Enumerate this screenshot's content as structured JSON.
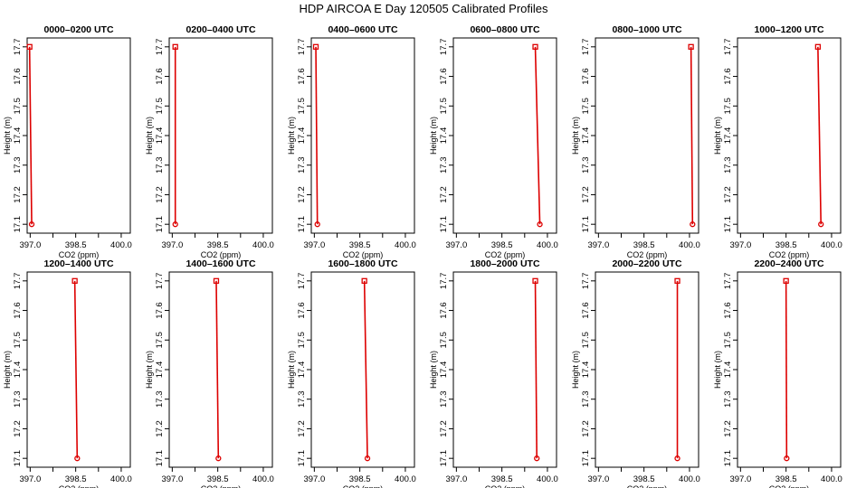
{
  "title": "HDP AIRCOA E  Day 120505  Calibrated Profiles",
  "colors": {
    "series": "#dd0000",
    "axis": "#000000",
    "background": "#ffffff"
  },
  "chart_data": {
    "type": "line",
    "xlabel": "CO2 (ppm)",
    "ylabel": "Height (m)",
    "xlim": [
      396.9,
      400.3
    ],
    "ylim": [
      17.07,
      17.73
    ],
    "xticks": [
      397.0,
      398.5,
      400.0
    ],
    "xtick_labels": [
      "397.0",
      "398.5",
      "400.0"
    ],
    "yticks": [
      17.1,
      17.2,
      17.3,
      17.4,
      17.5,
      17.6,
      17.7
    ],
    "ytick_labels": [
      "17.1",
      "17.2",
      "17.3",
      "17.4",
      "17.5",
      "17.6",
      "17.7"
    ],
    "grid": false,
    "panels": [
      {
        "title": "0000–0200 UTC",
        "x": [
          396.98,
          397.05
        ],
        "y": [
          17.7,
          17.1
        ]
      },
      {
        "title": "0200–0400 UTC",
        "x": [
          397.1,
          397.1
        ],
        "y": [
          17.7,
          17.1
        ]
      },
      {
        "title": "0400–0600 UTC",
        "x": [
          397.05,
          397.1
        ],
        "y": [
          17.7,
          17.1
        ]
      },
      {
        "title": "0600–0800 UTC",
        "x": [
          399.6,
          399.75
        ],
        "y": [
          17.7,
          17.1
        ]
      },
      {
        "title": "0800–1000 UTC",
        "x": [
          400.05,
          400.1
        ],
        "y": [
          17.7,
          17.1
        ]
      },
      {
        "title": "1000–1200 UTC",
        "x": [
          399.55,
          399.65
        ],
        "y": [
          17.7,
          17.1
        ]
      },
      {
        "title": "1200–1400 UTC",
        "x": [
          398.47,
          398.55
        ],
        "y": [
          17.7,
          17.1
        ]
      },
      {
        "title": "1400–1600 UTC",
        "x": [
          398.45,
          398.52
        ],
        "y": [
          17.7,
          17.1
        ]
      },
      {
        "title": "1600–1800 UTC",
        "x": [
          398.65,
          398.75
        ],
        "y": [
          17.7,
          17.1
        ]
      },
      {
        "title": "1800–2000 UTC",
        "x": [
          399.6,
          399.65
        ],
        "y": [
          17.7,
          17.1
        ]
      },
      {
        "title": "2000–2200 UTC",
        "x": [
          399.6,
          399.6
        ],
        "y": [
          17.7,
          17.1
        ]
      },
      {
        "title": "2200–2400 UTC",
        "x": [
          398.5,
          398.52
        ],
        "y": [
          17.7,
          17.1
        ]
      }
    ]
  }
}
